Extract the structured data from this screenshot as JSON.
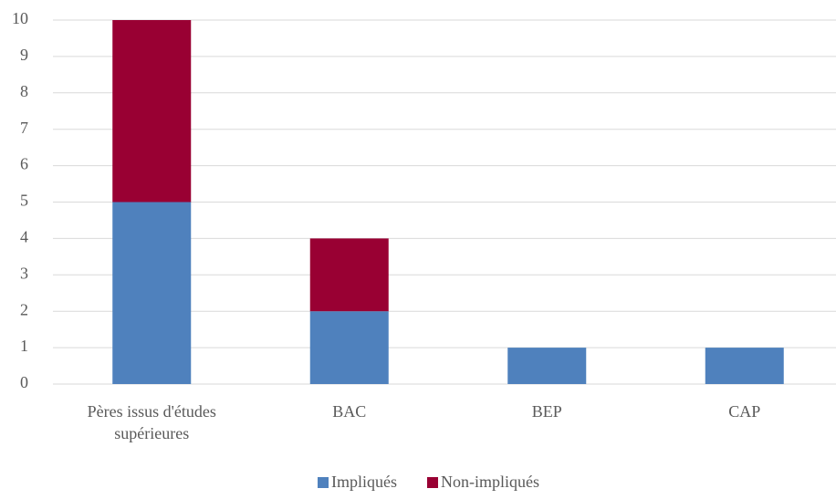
{
  "chart_data": {
    "type": "stacked_bar",
    "categories": [
      "Pères issus d'études supérieures",
      "BAC",
      "BEP",
      "CAP"
    ],
    "series": [
      {
        "name": "Impliqués",
        "color": "#4f81bd",
        "values": [
          5,
          2,
          1,
          1
        ]
      },
      {
        "name": "Non-impliqués",
        "color": "#990033",
        "values": [
          5,
          2,
          0,
          0
        ]
      }
    ],
    "ylim": [
      0,
      10
    ],
    "yticks": [
      0,
      1,
      2,
      3,
      4,
      5,
      6,
      7,
      8,
      9,
      10
    ],
    "grid": true,
    "legend": "bottom"
  }
}
